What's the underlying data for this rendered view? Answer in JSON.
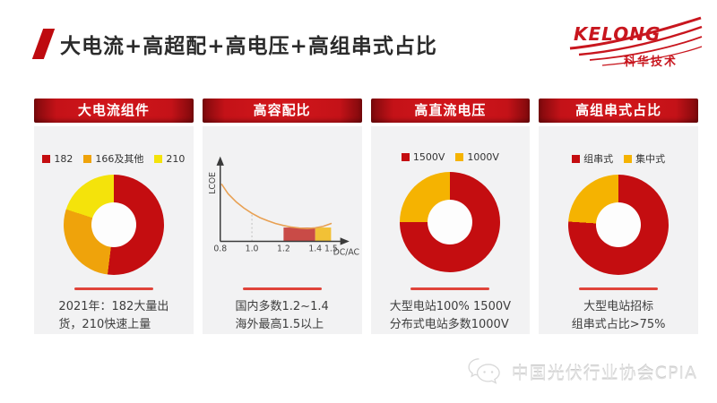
{
  "slide": {
    "title": "大电流+高超配+高电压+高组串式占比",
    "logo": {
      "brand": "KELONG",
      "subtext": "科华技术"
    },
    "footer": {
      "text": "中国光伏行业协会CPIA"
    }
  },
  "cards": [
    {
      "header": "大电流组件",
      "note_lines": [
        "2021年：182大量出",
        "货，210快速上量"
      ]
    },
    {
      "header": "高容配比",
      "note_lines": [
        "国内多数1.2~1.4",
        "海外最高1.5以上"
      ]
    },
    {
      "header": "高直流电压",
      "note_lines": [
        "大型电站100% 1500V",
        "分布式电站多数1000V"
      ]
    },
    {
      "header": "高组串式占比",
      "note_lines": [
        "大型电站招标",
        "组串式占比>75%"
      ]
    }
  ],
  "chart_data": [
    {
      "type": "pie",
      "donut": true,
      "title": "大电流组件",
      "unit": "%",
      "legend_position": "top",
      "series": [
        {
          "name": "182",
          "value": 52,
          "color": "#C40D10"
        },
        {
          "name": "166及其他",
          "value": 28,
          "color": "#EFA30B"
        },
        {
          "name": "210",
          "value": 20,
          "color": "#F4E30B"
        }
      ]
    },
    {
      "type": "line",
      "title": "高容配比",
      "xlabel": "DC/AC",
      "ylabel": "LCOE",
      "xticks": [
        "0.8",
        "1.0",
        "1.2",
        "1.4",
        "1.5"
      ],
      "xtick_values": [
        0.8,
        1.0,
        1.2,
        1.4,
        1.5
      ],
      "x_range": [
        0.8,
        1.55
      ],
      "grid": false,
      "curve_color": "#E8A052",
      "curve_points": [
        [
          0.81,
          0.72
        ],
        [
          0.85,
          0.6
        ],
        [
          0.9,
          0.5
        ],
        [
          0.95,
          0.42
        ],
        [
          1.0,
          0.355
        ],
        [
          1.05,
          0.3
        ],
        [
          1.1,
          0.26
        ],
        [
          1.15,
          0.225
        ],
        [
          1.2,
          0.2
        ],
        [
          1.25,
          0.18
        ],
        [
          1.3,
          0.168
        ],
        [
          1.35,
          0.162
        ],
        [
          1.4,
          0.17
        ],
        [
          1.45,
          0.19
        ],
        [
          1.5,
          0.225
        ]
      ],
      "regions": [
        {
          "from": 1.2,
          "to": 1.4,
          "top": 0.175,
          "color": "#C94B47"
        },
        {
          "from": 1.4,
          "to": 1.5,
          "top": 0.175,
          "color": "#F2C136"
        }
      ],
      "guide_line_x": 1.0
    },
    {
      "type": "pie",
      "donut": true,
      "title": "高直流电压",
      "unit": "%",
      "legend_position": "top",
      "series": [
        {
          "name": "1500V",
          "value": 75,
          "color": "#C40D10"
        },
        {
          "name": "1000V",
          "value": 25,
          "color": "#F5B301"
        }
      ]
    },
    {
      "type": "pie",
      "donut": true,
      "title": "高组串式占比",
      "unit": "%",
      "legend_position": "top",
      "series": [
        {
          "name": "组串式",
          "value": 76,
          "color": "#C40D10"
        },
        {
          "name": "集中式",
          "value": 24,
          "color": "#F5B301"
        }
      ]
    }
  ]
}
